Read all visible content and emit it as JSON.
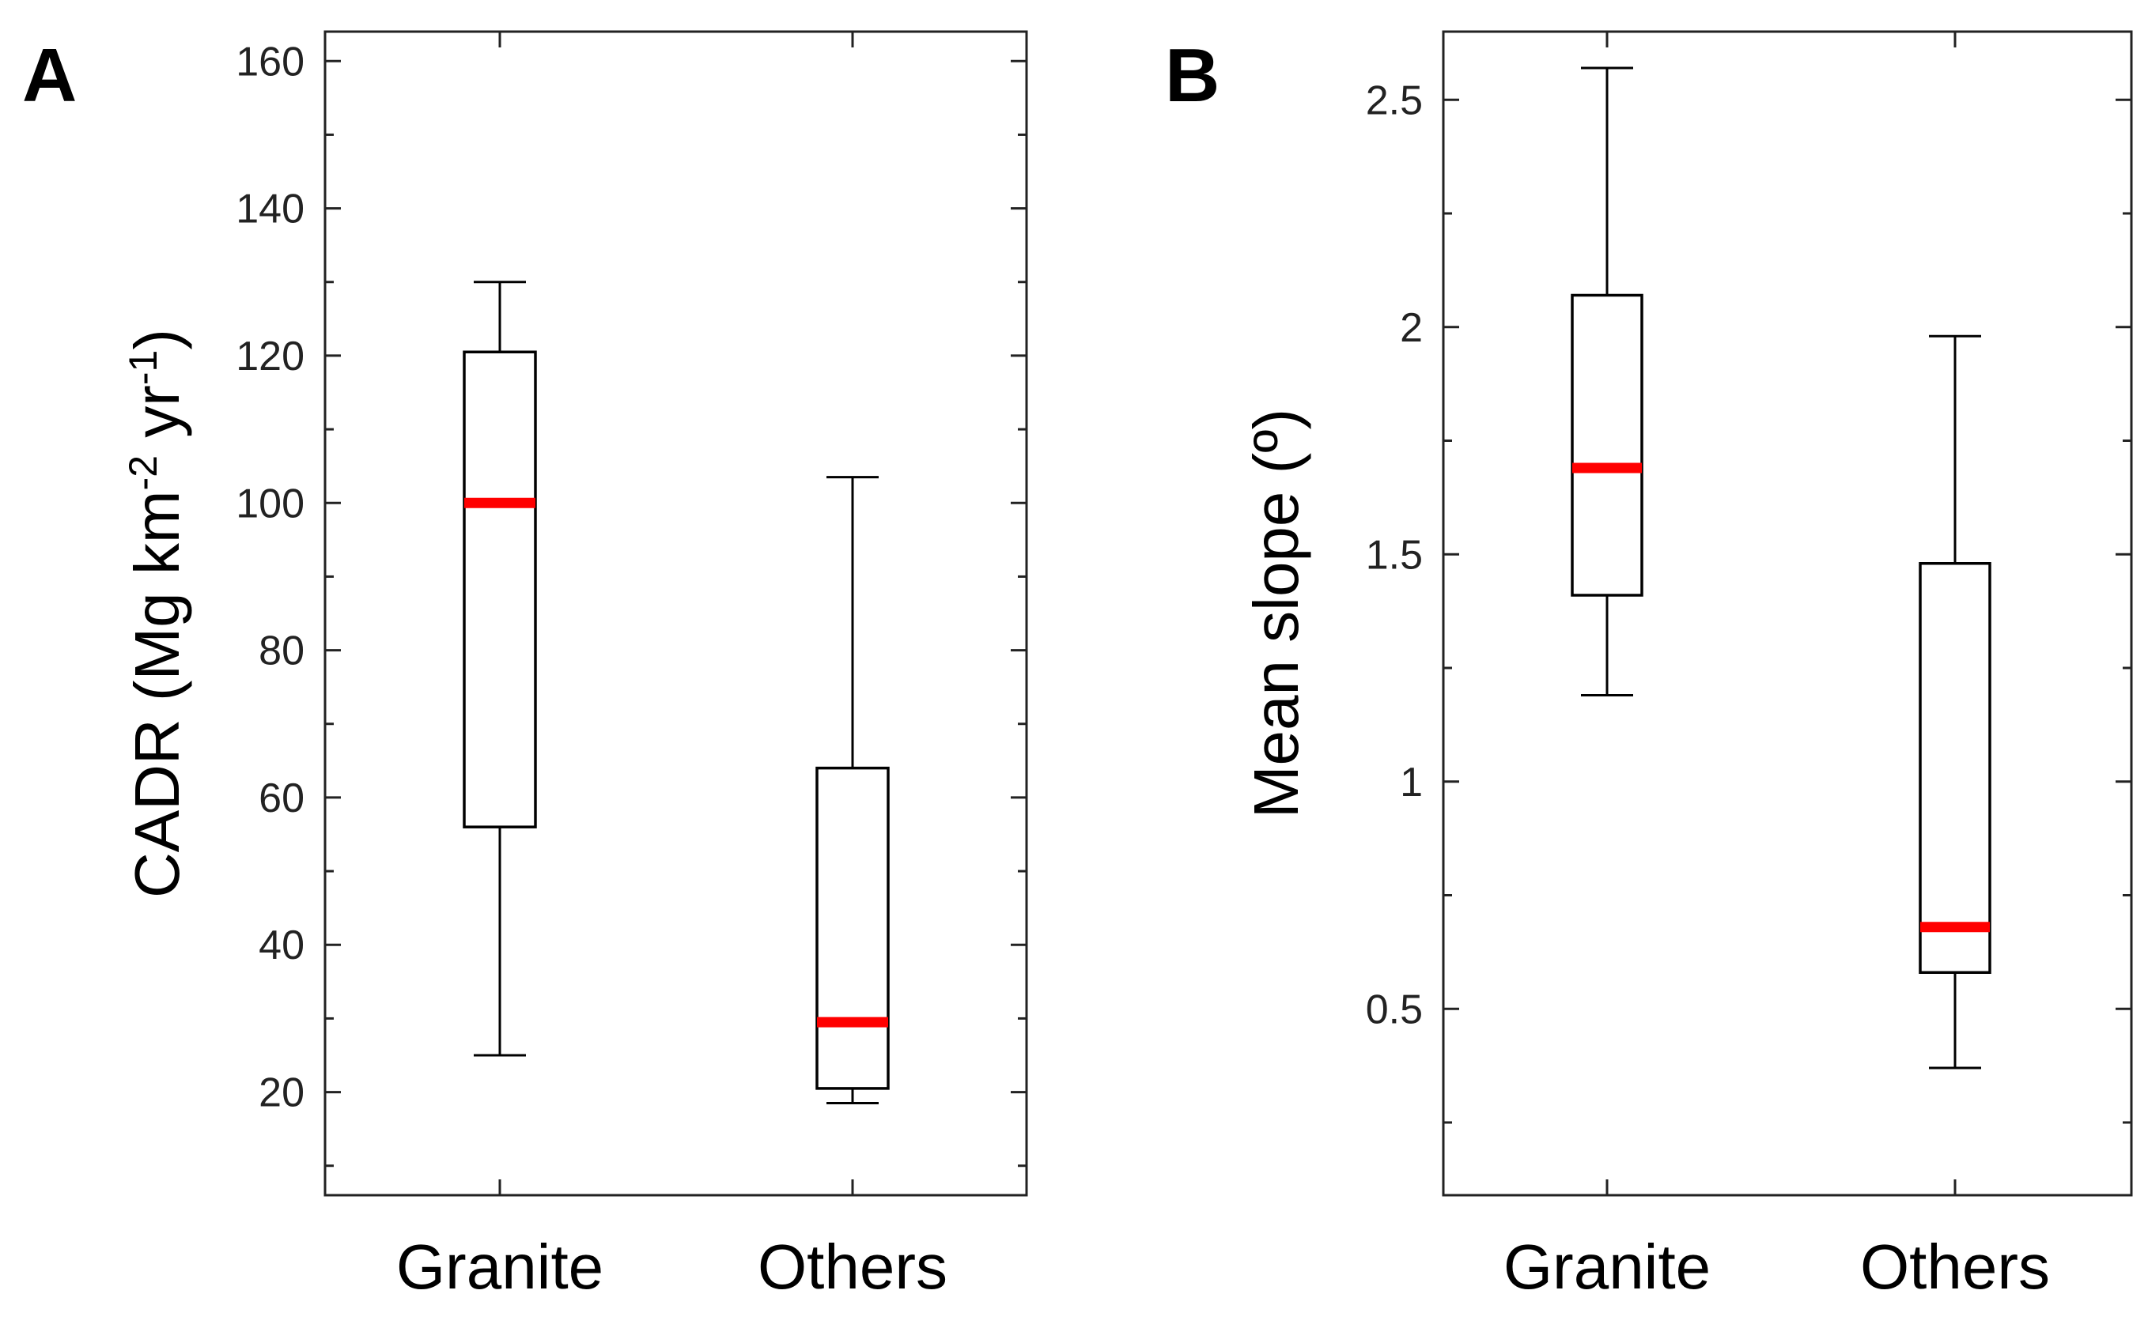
{
  "chart_data": [
    {
      "panel_label": "A",
      "type": "box",
      "categories": [
        "Granite",
        "Others"
      ],
      "ylabel": {
        "main": "CADR (Mg km",
        "sup1": "-2",
        "mid": " yr",
        "sup2": "-1",
        "end": ")"
      },
      "ylim": [
        6,
        164
      ],
      "yticks": [
        20,
        40,
        60,
        80,
        100,
        120,
        140,
        160
      ],
      "ytick_labels": [
        "20",
        "40",
        "60",
        "80",
        "100",
        "120",
        "140",
        "160"
      ],
      "boxes": [
        {
          "name": "Granite",
          "whisker_low": 25,
          "q1": 56,
          "median": 100,
          "q3": 120.5,
          "whisker_high": 130
        },
        {
          "name": "Others",
          "whisker_low": 18.5,
          "q1": 20.5,
          "median": 29.5,
          "q3": 64,
          "whisker_high": 103.5
        }
      ],
      "colors": {
        "box": "#000000",
        "median": "#ff0000"
      }
    },
    {
      "panel_label": "B",
      "type": "box",
      "categories": [
        "Granite",
        "Others"
      ],
      "ylabel": {
        "main": "Mean slope (º)",
        "sup1": "",
        "mid": "",
        "sup2": "",
        "end": ""
      },
      "ylim": [
        0.09,
        2.65
      ],
      "yticks": [
        0.5,
        1,
        1.5,
        2,
        2.5
      ],
      "ytick_labels": [
        "0.5",
        "1",
        "1.5",
        "2",
        "2.5"
      ],
      "boxes": [
        {
          "name": "Granite",
          "whisker_low": 1.19,
          "q1": 1.41,
          "median": 1.69,
          "q3": 2.07,
          "whisker_high": 2.57
        },
        {
          "name": "Others",
          "whisker_low": 0.37,
          "q1": 0.58,
          "median": 0.68,
          "q3": 1.48,
          "whisker_high": 1.98
        }
      ],
      "colors": {
        "box": "#000000",
        "median": "#ff0000"
      }
    }
  ]
}
